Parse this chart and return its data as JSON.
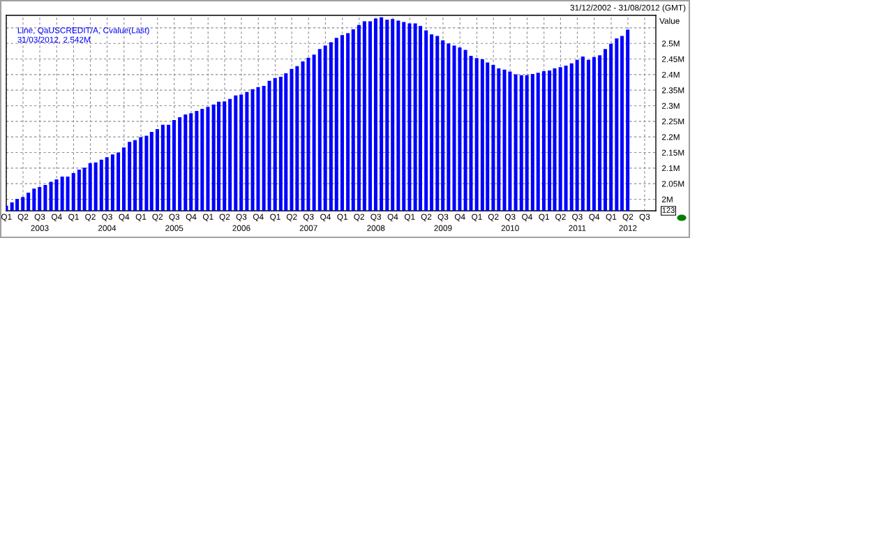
{
  "chart_data": {
    "type": "bar",
    "ylabel": "Value",
    "annotations": [
      "Line, QaUSCREDIT/A, Cvalue(Last)",
      "31/03/2012, 2.542M",
      "31/12/2002 - 31/08/2012 (GMT)",
      "123"
    ],
    "x": [
      "2002-12-31",
      "2003-01-31",
      "2003-02-28",
      "2003-03-31",
      "2003-04-30",
      "2003-05-31",
      "2003-06-30",
      "2003-07-31",
      "2003-08-31",
      "2003-09-30",
      "2003-10-31",
      "2003-11-30",
      "2003-12-31",
      "2004-01-31",
      "2004-02-29",
      "2004-03-31",
      "2004-04-30",
      "2004-05-31",
      "2004-06-30",
      "2004-07-31",
      "2004-08-31",
      "2004-09-30",
      "2004-10-31",
      "2004-11-30",
      "2004-12-31",
      "2005-01-31",
      "2005-02-28",
      "2005-03-31",
      "2005-04-30",
      "2005-05-31",
      "2005-06-30",
      "2005-07-31",
      "2005-08-31",
      "2005-09-30",
      "2005-10-31",
      "2005-11-30",
      "2005-12-31",
      "2006-01-31",
      "2006-02-28",
      "2006-03-31",
      "2006-04-30",
      "2006-05-31",
      "2006-06-30",
      "2006-07-31",
      "2006-08-31",
      "2006-09-30",
      "2006-10-31",
      "2006-11-30",
      "2006-12-31",
      "2007-01-31",
      "2007-02-28",
      "2007-03-31",
      "2007-04-30",
      "2007-05-31",
      "2007-06-30",
      "2007-07-31",
      "2007-08-31",
      "2007-09-30",
      "2007-10-31",
      "2007-11-30",
      "2007-12-31",
      "2008-01-31",
      "2008-02-29",
      "2008-03-31",
      "2008-04-30",
      "2008-05-31",
      "2008-06-30",
      "2008-07-31",
      "2008-08-31",
      "2008-09-30",
      "2008-10-31",
      "2008-11-30",
      "2008-12-31",
      "2009-01-31",
      "2009-02-28",
      "2009-03-31",
      "2009-04-30",
      "2009-05-31",
      "2009-06-30",
      "2009-07-31",
      "2009-08-31",
      "2009-09-30",
      "2009-10-31",
      "2009-11-30",
      "2009-12-31",
      "2010-01-31",
      "2010-02-28",
      "2010-03-31",
      "2010-04-30",
      "2010-05-31",
      "2010-06-30",
      "2010-07-31",
      "2010-08-31",
      "2010-09-30",
      "2010-10-31",
      "2010-11-30",
      "2010-12-31",
      "2011-01-31",
      "2011-02-28",
      "2011-03-31",
      "2011-04-30",
      "2011-05-31",
      "2011-06-30",
      "2011-07-31",
      "2011-08-31",
      "2011-09-30",
      "2011-10-31",
      "2011-11-30",
      "2011-12-31",
      "2012-01-31",
      "2012-02-29",
      "2012-03-31"
    ],
    "series": [
      {
        "color": "#0000ff",
        "values": [
          1.979,
          1.99,
          2.001,
          2.007,
          2.021,
          2.034,
          2.039,
          2.046,
          2.056,
          2.064,
          2.073,
          2.073,
          2.084,
          2.095,
          2.101,
          2.116,
          2.118,
          2.127,
          2.135,
          2.144,
          2.15,
          2.166,
          2.184,
          2.19,
          2.199,
          2.204,
          2.216,
          2.225,
          2.239,
          2.239,
          2.254,
          2.263,
          2.272,
          2.276,
          2.283,
          2.29,
          2.296,
          2.304,
          2.313,
          2.314,
          2.322,
          2.333,
          2.336,
          2.344,
          2.353,
          2.36,
          2.364,
          2.38,
          2.389,
          2.393,
          2.404,
          2.418,
          2.427,
          2.442,
          2.454,
          2.464,
          2.482,
          2.493,
          2.504,
          2.518,
          2.527,
          2.533,
          2.545,
          2.559,
          2.571,
          2.571,
          2.58,
          2.584,
          2.576,
          2.578,
          2.573,
          2.569,
          2.564,
          2.564,
          2.556,
          2.542,
          2.529,
          2.524,
          2.51,
          2.5,
          2.493,
          2.487,
          2.479,
          2.46,
          2.453,
          2.449,
          2.439,
          2.431,
          2.42,
          2.416,
          2.41,
          2.401,
          2.398,
          2.398,
          2.402,
          2.406,
          2.411,
          2.413,
          2.42,
          2.424,
          2.429,
          2.436,
          2.447,
          2.458,
          2.447,
          2.456,
          2.462,
          2.482,
          2.499,
          2.516,
          2.524,
          2.544
        ]
      }
    ],
    "xlim": [
      "2002-12-31",
      "2012-08-31"
    ],
    "ylim": [
      1.963,
      2.59
    ],
    "yticks": [
      {
        "value": 2.0,
        "label": "2M"
      },
      {
        "value": 2.05,
        "label": "2.05M"
      },
      {
        "value": 2.1,
        "label": "2.1M"
      },
      {
        "value": 2.15,
        "label": "2.15M"
      },
      {
        "value": 2.2,
        "label": "2.2M"
      },
      {
        "value": 2.25,
        "label": "2.25M"
      },
      {
        "value": 2.3,
        "label": "2.3M"
      },
      {
        "value": 2.35,
        "label": "2.35M"
      },
      {
        "value": 2.4,
        "label": "2.4M"
      },
      {
        "value": 2.45,
        "label": "2.45M"
      },
      {
        "value": 2.5,
        "label": "2.5M"
      },
      {
        "value": 2.55,
        "label": null
      }
    ],
    "xticks": [
      {
        "value": "2003-01-01",
        "label": "Q1"
      },
      {
        "value": "2003-04-01",
        "label": "Q2"
      },
      {
        "value": "2003-07-01",
        "label": "Q3\n2003"
      },
      {
        "value": "2003-10-01",
        "label": "Q4"
      },
      {
        "value": "2004-01-01",
        "label": "Q1"
      },
      {
        "value": "2004-04-01",
        "label": "Q2"
      },
      {
        "value": "2004-07-01",
        "label": "Q3\n2004"
      },
      {
        "value": "2004-10-01",
        "label": "Q4"
      },
      {
        "value": "2005-01-01",
        "label": "Q1"
      },
      {
        "value": "2005-04-01",
        "label": "Q2"
      },
      {
        "value": "2005-07-01",
        "label": "Q3\n2005"
      },
      {
        "value": "2005-10-01",
        "label": "Q4"
      },
      {
        "value": "2006-01-01",
        "label": "Q1"
      },
      {
        "value": "2006-04-01",
        "label": "Q2"
      },
      {
        "value": "2006-07-01",
        "label": "Q3\n2006"
      },
      {
        "value": "2006-10-01",
        "label": "Q4"
      },
      {
        "value": "2007-01-01",
        "label": "Q1"
      },
      {
        "value": "2007-04-01",
        "label": "Q2"
      },
      {
        "value": "2007-07-01",
        "label": "Q3\n2007"
      },
      {
        "value": "2007-10-01",
        "label": "Q4"
      },
      {
        "value": "2008-01-01",
        "label": "Q1"
      },
      {
        "value": "2008-04-01",
        "label": "Q2"
      },
      {
        "value": "2008-07-01",
        "label": "Q3\n2008"
      },
      {
        "value": "2008-10-01",
        "label": "Q4"
      },
      {
        "value": "2009-01-01",
        "label": "Q1"
      },
      {
        "value": "2009-04-01",
        "label": "Q2"
      },
      {
        "value": "2009-07-01",
        "label": "Q3\n2009"
      },
      {
        "value": "2009-10-01",
        "label": "Q4"
      },
      {
        "value": "2010-01-01",
        "label": "Q1"
      },
      {
        "value": "2010-04-01",
        "label": "Q2"
      },
      {
        "value": "2010-07-01",
        "label": "Q3\n2010"
      },
      {
        "value": "2010-10-01",
        "label": "Q4"
      },
      {
        "value": "2011-01-01",
        "label": "Q1"
      },
      {
        "value": "2011-04-01",
        "label": "Q2"
      },
      {
        "value": "2011-07-01",
        "label": "Q3\n2011"
      },
      {
        "value": "2011-10-01",
        "label": "Q4"
      },
      {
        "value": "2012-01-01",
        "label": "Q1"
      },
      {
        "value": "2012-04-01",
        "label": "Q2\n2012"
      },
      {
        "value": "2012-07-01",
        "label": "Q3"
      }
    ],
    "grid": true
  }
}
